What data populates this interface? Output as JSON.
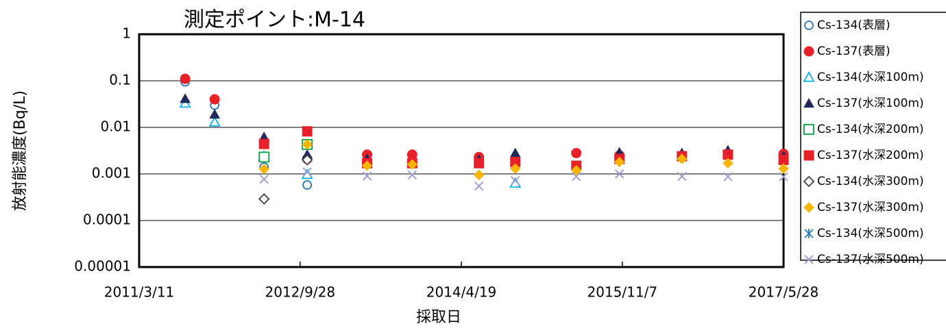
{
  "chart_data": {
    "type": "scatter",
    "title": "測定ポイント:M-14",
    "xlabel": "採取日",
    "ylabel": "放射能濃度(Bq/L)",
    "x": [
      "2011/8/20",
      "2011/12/2",
      "2012/5/24",
      "2012/10/23",
      "2013/5/22",
      "2013/10/28",
      "2014/6/20",
      "2014/10/26",
      "2015/5/29",
      "2015/10/28",
      "2016/6/4",
      "2016/11/13",
      "2017/5/28"
    ],
    "xlim": [
      "2011/3/11",
      "2017/5/28"
    ],
    "xticks": [
      "2011/3/11",
      "2012/9/28",
      "2014/4/19",
      "2015/11/7",
      "2017/5/28"
    ],
    "ylim": [
      1e-05,
      1
    ],
    "yticks": [
      1,
      0.1,
      0.01,
      0.001,
      0.0001,
      1e-05
    ],
    "log_y": true,
    "grid": true,
    "legend": "right",
    "series": [
      {
        "name": "Cs-134(表層)",
        "color": "#2e75b6",
        "marker": "circle-open",
        "values": [
          0.095,
          0.03,
          0.0014,
          0.00058,
          null,
          null,
          null,
          null,
          null,
          null,
          null,
          null,
          null
        ]
      },
      {
        "name": "Cs-137(表層)",
        "color": "#e8202a",
        "marker": "circle",
        "values": [
          0.11,
          0.04,
          null,
          0.0021,
          0.0026,
          0.0026,
          0.0023,
          null,
          0.0028,
          0.0025,
          null,
          null,
          0.0027
        ]
      },
      {
        "name": "Cs-134(水深100m)",
        "color": "#00b0f0",
        "marker": "triangle-open",
        "values": [
          0.033,
          0.013,
          0.0024,
          0.00097,
          null,
          null,
          null,
          0.00063,
          null,
          null,
          null,
          null,
          null
        ]
      },
      {
        "name": "Cs-137(水深100m)",
        "color": "#1f2a5c",
        "marker": "triangle",
        "values": [
          0.041,
          0.019,
          0.0062,
          0.0026,
          0.0021,
          null,
          0.002,
          0.0028,
          null,
          0.0029,
          0.0028,
          0.0032,
          0.0024
        ]
      },
      {
        "name": "Cs-134(水深200m)",
        "color": "#00a040",
        "marker": "square-open",
        "values": [
          null,
          null,
          0.0023,
          0.0043,
          null,
          null,
          null,
          null,
          null,
          null,
          null,
          null,
          null
        ]
      },
      {
        "name": "Cs-137(水深200m)",
        "color": "#e8202a",
        "marker": "square",
        "values": [
          null,
          null,
          0.0044,
          0.0082,
          0.0017,
          0.0017,
          0.0017,
          0.0018,
          0.0015,
          0.0021,
          0.0024,
          0.0026,
          0.002
        ]
      },
      {
        "name": "Cs-134(水深300m)",
        "color": "#404040",
        "marker": "diamond-open",
        "values": [
          null,
          null,
          0.00029,
          0.002,
          null,
          null,
          null,
          null,
          null,
          null,
          null,
          null,
          null
        ]
      },
      {
        "name": "Cs-137(水深300m)",
        "color": "#f7b500",
        "marker": "diamond",
        "values": [
          null,
          null,
          0.00128,
          0.0043,
          0.0015,
          0.0016,
          0.00095,
          0.0013,
          0.0012,
          0.0018,
          0.0021,
          0.0017,
          0.0013
        ]
      },
      {
        "name": "Cs-134(水深500m)",
        "color": "#1f77b4",
        "marker": "asterisk",
        "values": [
          null,
          null,
          null,
          null,
          null,
          null,
          null,
          null,
          null,
          null,
          null,
          null,
          null
        ]
      },
      {
        "name": "Cs-137(水深500m)",
        "color": "#a0a0d0",
        "marker": "x",
        "values": [
          null,
          null,
          0.00077,
          0.0011,
          0.0009,
          0.00095,
          0.00055,
          0.00072,
          0.00088,
          0.001,
          0.00088,
          0.00087,
          0.00087
        ]
      }
    ]
  }
}
